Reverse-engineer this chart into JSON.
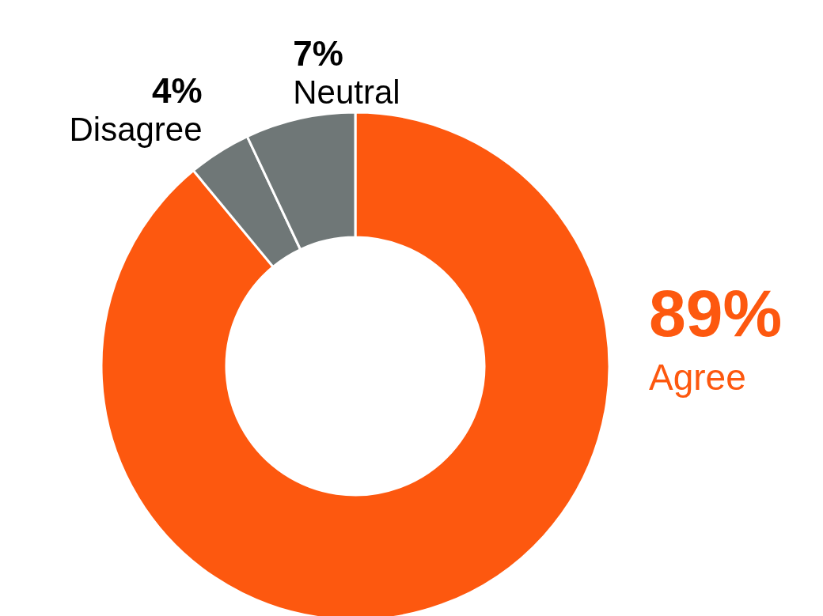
{
  "chart_data": {
    "type": "donut",
    "categories": [
      "Agree",
      "Disagree",
      "Neutral"
    ],
    "values": [
      89,
      4,
      7
    ],
    "colors": [
      "#fd580f",
      "#6f7777",
      "#6f7777"
    ],
    "value_labels": [
      "89%",
      "4%",
      "7%"
    ]
  }
}
